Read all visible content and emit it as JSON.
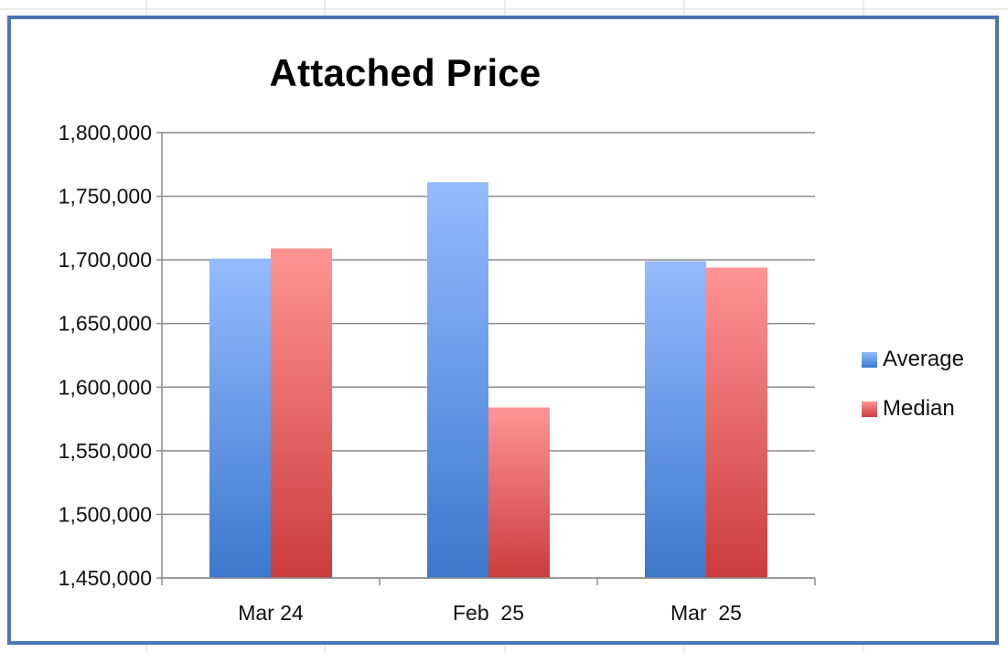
{
  "colors": {
    "frame": "#4a76b4",
    "average_top": "#94bbff",
    "average_bottom": "#3c78cc",
    "median_top": "#ff9494",
    "median_bottom": "#cc3c3c"
  },
  "chart_data": {
    "type": "bar",
    "title": "Attached Price",
    "xlabel": "",
    "ylabel": "",
    "categories": [
      "Mar 24",
      "Feb  25",
      "Mar  25"
    ],
    "series": [
      {
        "name": "Average",
        "values": [
          1701000,
          1761000,
          1699000
        ]
      },
      {
        "name": "Median",
        "values": [
          1709000,
          1584000,
          1694000
        ]
      }
    ],
    "ylim": [
      1450000,
      1800000
    ],
    "yticks": [
      1450000,
      1500000,
      1550000,
      1600000,
      1650000,
      1700000,
      1750000,
      1800000
    ],
    "ytick_labels": [
      "1,450,000",
      "1,500,000",
      "1,550,000",
      "1,600,000",
      "1,650,000",
      "1,700,000",
      "1,750,000",
      "1,800,000"
    ],
    "grid": true,
    "legend_position": "right"
  }
}
